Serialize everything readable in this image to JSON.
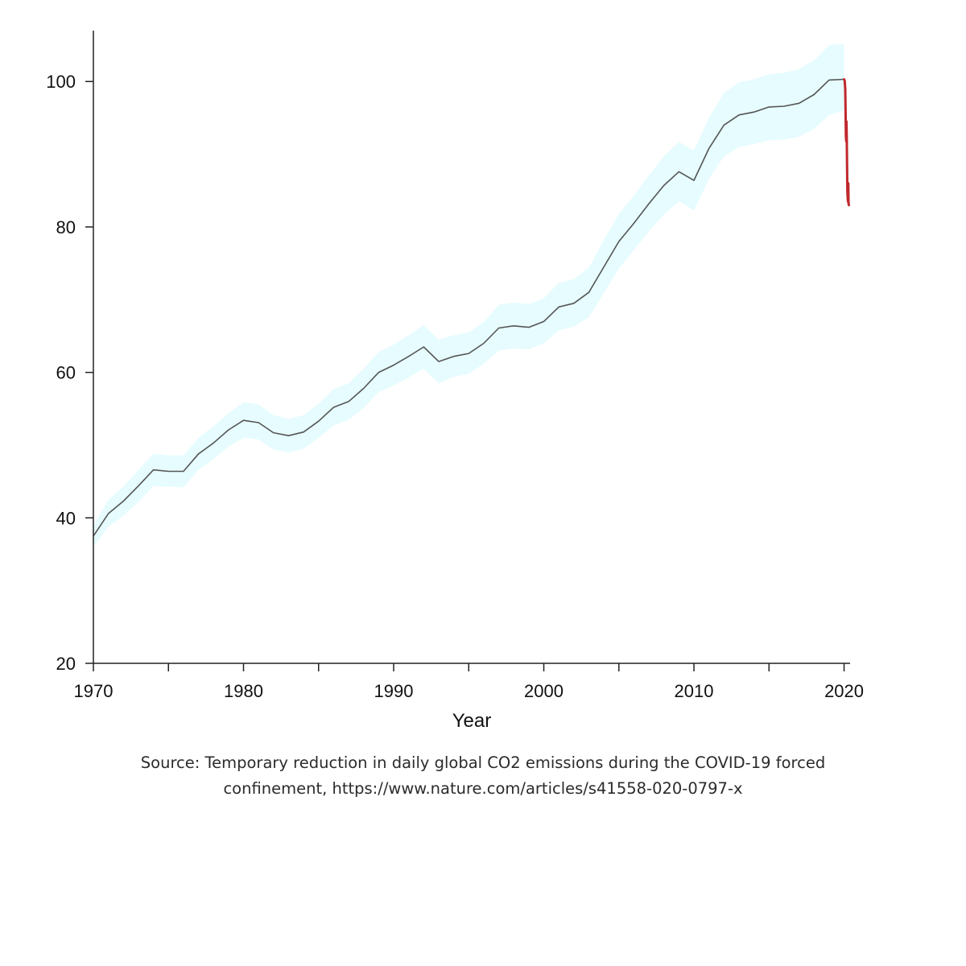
{
  "chart_data": {
    "type": "line",
    "title": "",
    "xlabel": "Year",
    "ylabel": "",
    "xlim": [
      1970,
      2020.4
    ],
    "ylim": [
      20,
      107
    ],
    "xticks_major": [
      1970,
      1980,
      1990,
      2000,
      2010,
      2020
    ],
    "xticks_minor": [
      1975,
      1985,
      1995,
      2005,
      2015
    ],
    "yticks": [
      20,
      40,
      60,
      80,
      100
    ],
    "grid": false,
    "legend": "none",
    "series": [
      {
        "color": "#555555",
        "band_color": "#e6fcfe",
        "x": [
          1970,
          1971,
          1972,
          1973,
          1974,
          1975,
          1976,
          1977,
          1978,
          1979,
          1980,
          1981,
          1982,
          1983,
          1984,
          1985,
          1986,
          1987,
          1988,
          1989,
          1990,
          1991,
          1992,
          1993,
          1994,
          1995,
          1996,
          1997,
          1998,
          1999,
          2000,
          2001,
          2002,
          2003,
          2004,
          2005,
          2006,
          2007,
          2008,
          2009,
          2010,
          2011,
          2012,
          2013,
          2014,
          2015,
          2016,
          2017,
          2018,
          2019,
          2020
        ],
        "y": [
          37.5,
          40.6,
          42.3,
          44.4,
          46.6,
          46.4,
          46.4,
          48.8,
          50.3,
          52.1,
          53.4,
          53.1,
          51.7,
          51.3,
          51.8,
          53.3,
          55.2,
          56.0,
          57.8,
          60.0,
          61.0,
          62.2,
          63.5,
          61.5,
          62.2,
          62.6,
          64.0,
          66.1,
          66.4,
          66.2,
          67.0,
          69.0,
          69.5,
          71.0,
          74.5,
          78.0,
          80.5,
          83.2,
          85.7,
          87.6,
          86.4,
          90.8,
          94.0,
          95.4,
          95.8,
          96.5,
          96.6,
          97.0,
          98.2,
          100.2,
          100.3
        ],
        "lower": [
          36.0,
          38.8,
          40.3,
          42.2,
          44.4,
          44.3,
          44.2,
          46.6,
          48.1,
          49.8,
          51.0,
          50.8,
          49.4,
          49.0,
          49.5,
          51.0,
          52.7,
          53.5,
          55.1,
          57.3,
          58.2,
          59.3,
          60.5,
          58.5,
          59.4,
          59.8,
          61.2,
          63.0,
          63.3,
          63.2,
          64.0,
          65.8,
          66.3,
          67.6,
          70.9,
          74.3,
          76.8,
          79.4,
          81.7,
          83.5,
          82.3,
          86.6,
          89.7,
          91.0,
          91.4,
          91.9,
          92.0,
          92.4,
          93.5,
          95.4,
          96.0
        ],
        "upper": [
          39.0,
          42.5,
          44.3,
          46.6,
          48.8,
          48.6,
          48.6,
          51.0,
          52.6,
          54.4,
          55.9,
          55.6,
          54.1,
          53.6,
          54.1,
          55.7,
          57.7,
          58.5,
          60.5,
          62.8,
          63.8,
          65.1,
          66.5,
          64.5,
          65.1,
          65.5,
          66.9,
          69.3,
          69.6,
          69.4,
          70.2,
          72.3,
          72.8,
          74.4,
          78.2,
          81.8,
          84.3,
          87.1,
          89.7,
          91.7,
          90.5,
          95.0,
          98.4,
          99.9,
          100.3,
          101.0,
          101.2,
          101.7,
          102.9,
          105.0,
          105.2
        ]
      },
      {
        "color": "#c0282c",
        "x": [
          2020.0,
          2020.04,
          2020.08,
          2020.1,
          2020.12,
          2020.14,
          2020.16,
          2020.18,
          2020.2,
          2020.22,
          2020.24,
          2020.26,
          2020.28,
          2020.3,
          2020.32
        ],
        "y": [
          100.3,
          100.1,
          99.0,
          96.0,
          92.5,
          91.8,
          94.5,
          92.0,
          88.0,
          85.0,
          84.0,
          83.5,
          86.0,
          83.2,
          83.0
        ]
      }
    ]
  },
  "caption": {
    "line1": "Source: Temporary reduction in daily global CO2 emissions during the COVID-19 forced",
    "line2": "confinement, https://www.nature.com/articles/s41558-020-0797-x"
  }
}
